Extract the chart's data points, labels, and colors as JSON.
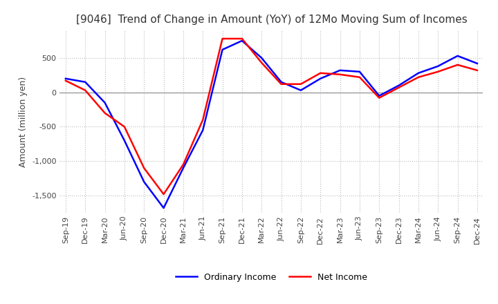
{
  "title": "[9046]  Trend of Change in Amount (YoY) of 12Mo Moving Sum of Incomes",
  "ylabel": "Amount (million yen)",
  "ylim": [
    -1750,
    900
  ],
  "yticks": [
    -1500,
    -1000,
    -500,
    0,
    500
  ],
  "x_labels": [
    "Sep-19",
    "Dec-19",
    "Mar-20",
    "Jun-20",
    "Sep-20",
    "Dec-20",
    "Mar-21",
    "Jun-21",
    "Sep-21",
    "Dec-21",
    "Mar-22",
    "Jun-22",
    "Sep-22",
    "Dec-22",
    "Mar-23",
    "Jun-23",
    "Sep-23",
    "Dec-23",
    "Mar-24",
    "Jun-24",
    "Sep-24",
    "Dec-24"
  ],
  "ordinary_income": [
    200,
    150,
    -150,
    -700,
    -1300,
    -1680,
    -1100,
    -550,
    620,
    750,
    500,
    150,
    30,
    200,
    320,
    300,
    -50,
    100,
    280,
    380,
    530,
    420
  ],
  "net_income": [
    170,
    30,
    -300,
    -500,
    -1100,
    -1480,
    -1050,
    -400,
    780,
    780,
    430,
    120,
    120,
    280,
    260,
    220,
    -80,
    70,
    220,
    300,
    400,
    320
  ],
  "ordinary_color": "#0000FF",
  "net_color": "#FF0000",
  "grid_color": "#BBBBBB",
  "background_color": "#FFFFFF",
  "zero_line_color": "#888888",
  "legend_labels": [
    "Ordinary Income",
    "Net Income"
  ],
  "title_fontsize": 11,
  "ylabel_fontsize": 9,
  "tick_fontsize": 8
}
